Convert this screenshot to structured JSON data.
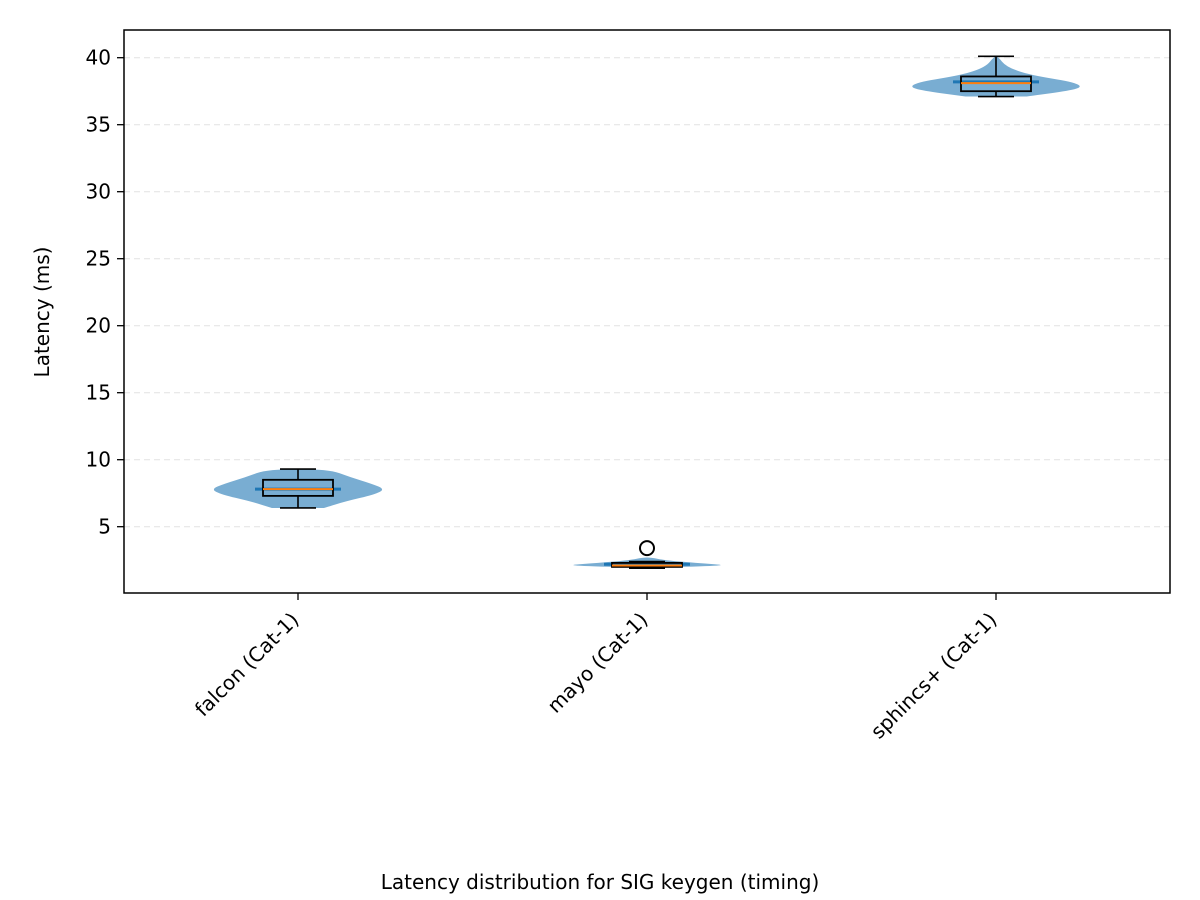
{
  "chart_data": {
    "type": "violin",
    "title": "",
    "caption": "Latency distribution for SIG keygen (timing)",
    "xlabel": "",
    "ylabel": "Latency (ms)",
    "ylim": [
      0,
      42
    ],
    "yticks": [
      5,
      10,
      15,
      20,
      25,
      30,
      35,
      40
    ],
    "grid": "y-dashed",
    "colors": {
      "violin": "#1f77b4",
      "median": "#ff7f0e",
      "box": "#000000",
      "grid": "#e6e6e6"
    },
    "categories": [
      "falcon (Cat-1)",
      "mayo (Cat-1)",
      "sphincs+ (Cat-1)"
    ],
    "series": [
      {
        "label": "falcon (Cat-1)",
        "min": 6.4,
        "q1": 7.3,
        "median": 7.8,
        "q3": 8.5,
        "max": 9.3,
        "mean": 7.8,
        "outliers": [],
        "density": [
          [
            6.4,
            0.3
          ],
          [
            6.9,
            0.55
          ],
          [
            7.4,
            0.88
          ],
          [
            7.8,
            1.0
          ],
          [
            8.2,
            0.85
          ],
          [
            8.7,
            0.6
          ],
          [
            9.3,
            0.35
          ]
        ]
      },
      {
        "label": "mayo (Cat-1)",
        "min": 1.9,
        "q1": 2.0,
        "median": 2.1,
        "q3": 2.3,
        "max": 2.4,
        "mean": 2.2,
        "outliers": [
          3.4
        ],
        "density": [
          [
            1.95,
            0.05
          ],
          [
            2.1,
            1.0
          ],
          [
            2.3,
            0.55
          ],
          [
            2.5,
            0.2
          ],
          [
            2.7,
            0.05
          ]
        ]
      },
      {
        "label": "sphincs+ (Cat-1)",
        "min": 37.1,
        "q1": 37.5,
        "median": 38.1,
        "q3": 38.6,
        "max": 40.1,
        "mean": 38.2,
        "outliers": [],
        "density": [
          [
            37.1,
            0.35
          ],
          [
            37.5,
            0.8
          ],
          [
            37.8,
            1.0
          ],
          [
            38.2,
            0.88
          ],
          [
            38.7,
            0.4
          ],
          [
            39.3,
            0.12
          ],
          [
            40.1,
            0.02
          ]
        ]
      }
    ]
  }
}
